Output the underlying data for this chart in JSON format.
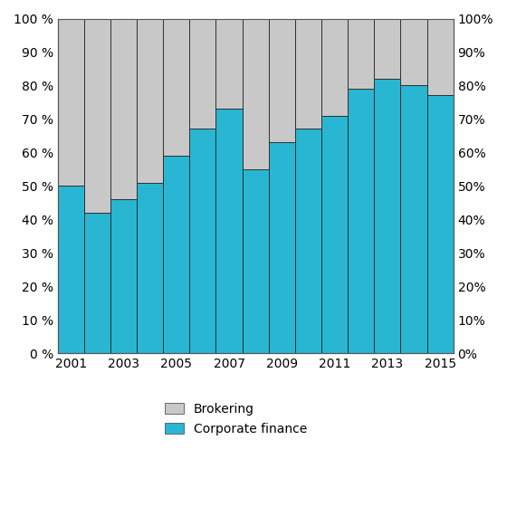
{
  "years": [
    2001,
    2002,
    2003,
    2004,
    2005,
    2006,
    2007,
    2008,
    2009,
    2010,
    2011,
    2012,
    2013,
    2014,
    2015
  ],
  "corporate_finance": [
    50,
    42,
    46,
    51,
    59,
    67,
    73,
    55,
    63,
    67,
    71,
    79,
    82,
    80,
    77
  ],
  "brokering": [
    50,
    58,
    54,
    49,
    41,
    33,
    27,
    45,
    37,
    33,
    29,
    21,
    18,
    20,
    23
  ],
  "corporate_finance_color": "#29B6D2",
  "brokering_color": "#C8C8C8",
  "bar_edge_color": "#222222",
  "yticks": [
    0,
    10,
    20,
    30,
    40,
    50,
    60,
    70,
    80,
    90,
    100
  ],
  "ylim": [
    0,
    100
  ],
  "legend_labels": [
    "Brokering",
    "Corporate finance"
  ],
  "background_color": "#FFFFFF",
  "bar_width": 1.0,
  "xtick_years": [
    2001,
    2003,
    2005,
    2007,
    2009,
    2011,
    2013,
    2015
  ]
}
